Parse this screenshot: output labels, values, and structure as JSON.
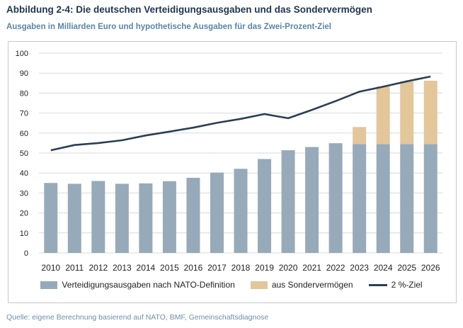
{
  "title": "Abbildung 2-4: Die deutschen Verteidigungsausgaben und das Sondervermögen",
  "subtitle": "Ausgaben in Milliarden Euro und hypothetische Ausgaben für das Zwei-Prozent-Ziel",
  "source": "Quelle: eigene Berechnung basierend auf NATO, BMF, Gemeinschaftsdiagnose",
  "colors": {
    "nato": "#97aab9",
    "sonder": "#e3c69a",
    "ziel": "#2a3f56",
    "grid": "#d9d9d9",
    "title": "#1f3550",
    "subtitle": "#5b85a6"
  },
  "chart_data": {
    "type": "bar",
    "stacked": true,
    "categories": [
      "2010",
      "2011",
      "2012",
      "2013",
      "2014",
      "2015",
      "2016",
      "2017",
      "2018",
      "2019",
      "2020",
      "2021",
      "2022",
      "2023",
      "2024",
      "2025",
      "2026"
    ],
    "series": [
      {
        "name": "Verteidigungsausgaben nach NATO-Definition",
        "kind": "bar",
        "color": "#97aab9",
        "values": [
          35,
          34.6,
          36,
          34.6,
          34.8,
          35.9,
          37.6,
          40.2,
          42.1,
          47,
          51.4,
          53,
          54.9,
          54.5,
          54.5,
          54.5,
          54.5
        ]
      },
      {
        "name": "aus Sondervermögen",
        "kind": "bar",
        "color": "#e3c69a",
        "values": [
          0,
          0,
          0,
          0,
          0,
          0,
          0,
          0,
          0,
          0,
          0,
          0,
          0,
          8.5,
          28.8,
          31.3,
          31.7
        ]
      },
      {
        "name": "2 %-Ziel",
        "kind": "line",
        "color": "#2a3f56",
        "values": [
          51.4,
          54,
          55,
          56.4,
          58.8,
          60.7,
          62.7,
          65.1,
          67.1,
          69.5,
          67.4,
          71.6,
          76,
          80.7,
          83.2,
          85.9,
          88.3
        ]
      }
    ],
    "yticks": [
      "0",
      "10",
      "20",
      "30",
      "40",
      "50",
      "60",
      "70",
      "80",
      "90",
      "100"
    ],
    "ylim": [
      0,
      100
    ],
    "grid": true,
    "legend_position": "bottom"
  }
}
